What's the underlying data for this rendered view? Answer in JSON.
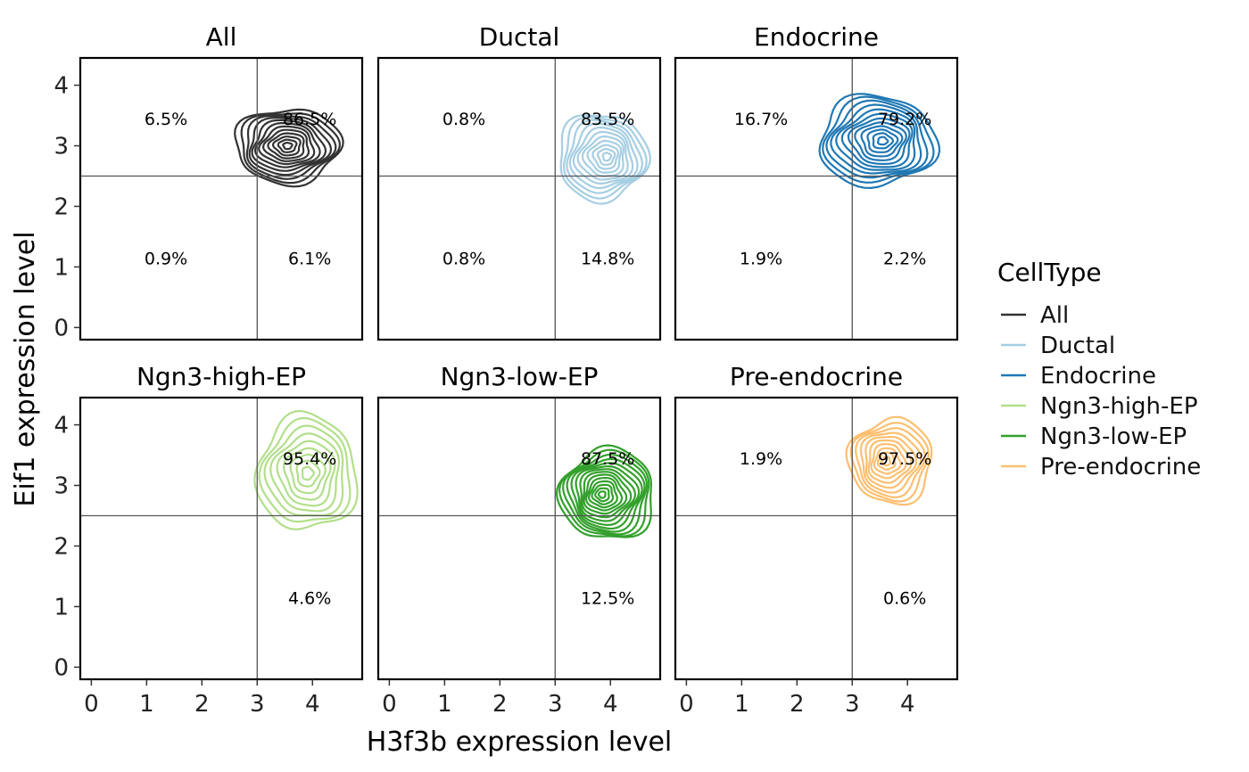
{
  "chart_data": {
    "type": "contour",
    "xlabel": "H3f3b expression level",
    "ylabel": "Eif1 expression level",
    "xlim": [
      -0.2,
      4.9
    ],
    "ylim": [
      -0.2,
      4.45
    ],
    "x_ticks": [
      0,
      1,
      2,
      3,
      4
    ],
    "y_ticks": [
      0,
      1,
      2,
      3,
      4
    ],
    "threshold_x": 3.0,
    "threshold_y": 2.5,
    "legend": {
      "title": "CellType",
      "position": "right",
      "entries": [
        {
          "label": "All",
          "color": "#333333"
        },
        {
          "label": "Ductal",
          "color": "#a6cee3"
        },
        {
          "label": "Endocrine",
          "color": "#1f78b4"
        },
        {
          "label": "Ngn3-high-EP",
          "color": "#b2df8a"
        },
        {
          "label": "Ngn3-low-EP",
          "color": "#33a02c"
        },
        {
          "label": "Pre-endocrine",
          "color": "#fdbf6f"
        }
      ]
    },
    "panels": [
      {
        "title": "All",
        "color": "#333333",
        "center": [
          3.55,
          3.0
        ],
        "radius": [
          0.95,
          0.62
        ],
        "levels": 12,
        "quadrant_labels": [
          {
            "quadrant": "upper-left",
            "text": "6.5%",
            "x": 1.35,
            "y": 3.45
          },
          {
            "quadrant": "upper-right",
            "text": "86.5%",
            "x": 3.95,
            "y": 3.45
          },
          {
            "quadrant": "lower-left",
            "text": "0.9%",
            "x": 1.35,
            "y": 1.15
          },
          {
            "quadrant": "lower-right",
            "text": "6.1%",
            "x": 3.95,
            "y": 1.15
          }
        ]
      },
      {
        "title": "Ductal",
        "color": "#a6cee3",
        "center": [
          3.85,
          2.82
        ],
        "radius": [
          0.8,
          0.72
        ],
        "levels": 11,
        "quadrant_labels": [
          {
            "quadrant": "upper-left",
            "text": "0.8%",
            "x": 1.35,
            "y": 3.45
          },
          {
            "quadrant": "upper-right",
            "text": "83.5%",
            "x": 3.95,
            "y": 3.45
          },
          {
            "quadrant": "lower-left",
            "text": "0.8%",
            "x": 1.35,
            "y": 1.15
          },
          {
            "quadrant": "lower-right",
            "text": "14.8%",
            "x": 3.95,
            "y": 1.15
          }
        ]
      },
      {
        "title": "Endocrine",
        "color": "#1f78b4",
        "center": [
          3.45,
          3.08
        ],
        "radius": [
          1.05,
          0.75
        ],
        "levels": 12,
        "quadrant_labels": [
          {
            "quadrant": "upper-left",
            "text": "16.7%",
            "x": 1.35,
            "y": 3.45
          },
          {
            "quadrant": "upper-right",
            "text": "79.2%",
            "x": 3.95,
            "y": 3.45
          },
          {
            "quadrant": "lower-left",
            "text": "1.9%",
            "x": 1.35,
            "y": 1.15
          },
          {
            "quadrant": "lower-right",
            "text": "2.2%",
            "x": 3.95,
            "y": 1.15
          }
        ]
      },
      {
        "title": "Ngn3-high-EP",
        "color": "#b2df8a",
        "center": [
          3.9,
          3.2
        ],
        "radius": [
          0.9,
          0.95
        ],
        "levels": 9,
        "quadrant_labels": [
          {
            "quadrant": "upper-right",
            "text": "95.4%",
            "x": 3.95,
            "y": 3.45
          },
          {
            "quadrant": "lower-right",
            "text": "4.6%",
            "x": 3.95,
            "y": 1.15
          }
        ]
      },
      {
        "title": "Ngn3-low-EP",
        "color": "#33a02c",
        "center": [
          3.95,
          2.85
        ],
        "radius": [
          0.85,
          0.75
        ],
        "levels": 14,
        "quadrant_labels": [
          {
            "quadrant": "upper-right",
            "text": "87.5%",
            "x": 3.95,
            "y": 3.45
          },
          {
            "quadrant": "lower-right",
            "text": "12.5%",
            "x": 3.95,
            "y": 1.15
          }
        ]
      },
      {
        "title": "Pre-endocrine",
        "color": "#fdbf6f",
        "center": [
          3.7,
          3.4
        ],
        "radius": [
          0.75,
          0.7
        ],
        "levels": 10,
        "quadrant_labels": [
          {
            "quadrant": "upper-left",
            "text": "1.9%",
            "x": 1.35,
            "y": 3.45
          },
          {
            "quadrant": "upper-right",
            "text": "97.5%",
            "x": 3.95,
            "y": 3.45
          },
          {
            "quadrant": "lower-right",
            "text": "0.6%",
            "x": 3.95,
            "y": 1.15
          }
        ]
      }
    ]
  }
}
